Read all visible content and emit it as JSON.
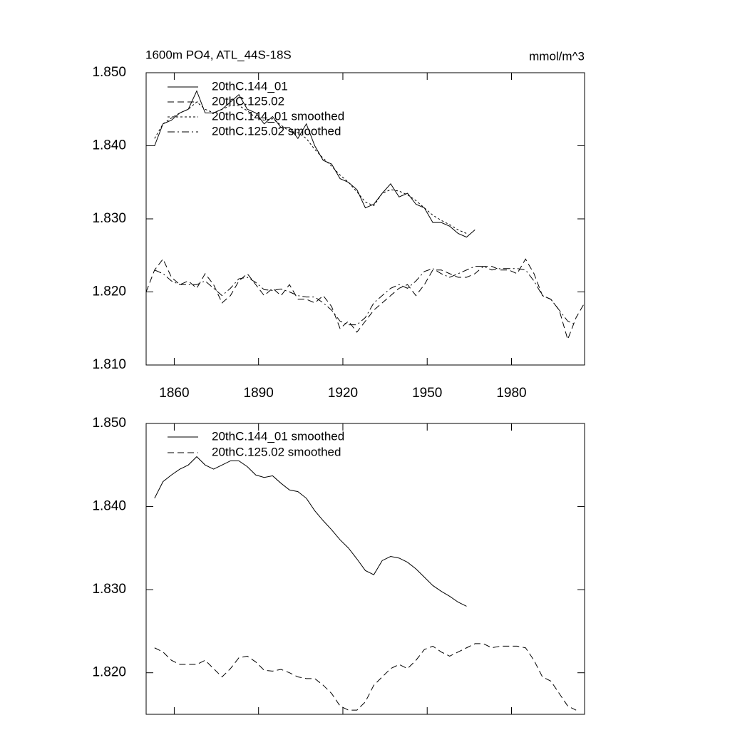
{
  "chart_data": [
    {
      "type": "line",
      "title": "1600m PO4, ATL_44S-18S",
      "units_label": "mmol/m^3",
      "x": [
        1850,
        1853,
        1856,
        1859,
        1862,
        1865,
        1868,
        1871,
        1874,
        1877,
        1880,
        1883,
        1886,
        1889,
        1892,
        1895,
        1898,
        1901,
        1904,
        1907,
        1910,
        1913,
        1916,
        1919,
        1922,
        1925,
        1928,
        1931,
        1934,
        1937,
        1940,
        1943,
        1946,
        1949,
        1952,
        1955,
        1958,
        1961,
        1964,
        1967,
        1970,
        1973,
        1976,
        1979,
        1982,
        1985,
        1988,
        1991,
        1994,
        1997,
        2000,
        2003,
        2006
      ],
      "xlim": [
        1850,
        2006
      ],
      "xticks": [
        1860,
        1890,
        1920,
        1950,
        1980
      ],
      "ylim": [
        1.81,
        1.85
      ],
      "yticks": [
        {
          "value": 1.81,
          "label": "1.810"
        },
        {
          "value": 1.82,
          "label": "1.820"
        },
        {
          "value": 1.83,
          "label": "1.830"
        },
        {
          "value": 1.84,
          "label": "1.840"
        },
        {
          "value": 1.85,
          "label": "1.850"
        }
      ],
      "series": [
        {
          "name": "20thC.144_01",
          "color": "#000000",
          "dash": "none",
          "values": [
            1.84,
            1.84,
            1.843,
            1.8435,
            1.8445,
            1.845,
            1.8475,
            1.8445,
            1.8445,
            1.845,
            1.846,
            1.847,
            1.845,
            1.8445,
            1.843,
            1.844,
            1.8425,
            1.8425,
            1.841,
            1.843,
            1.84,
            1.838,
            1.8375,
            1.8355,
            1.835,
            1.834,
            1.8315,
            1.832,
            1.8335,
            1.8348,
            1.833,
            1.8335,
            1.832,
            1.8315,
            1.8295,
            1.8295,
            1.829,
            1.828,
            1.8275,
            1.8285,
            null,
            null,
            null,
            null,
            null,
            null,
            null,
            null,
            null,
            null,
            null,
            null,
            null
          ]
        },
        {
          "name": "20thC.125.02",
          "color": "#000000",
          "dash": "9 5",
          "values": [
            1.82,
            1.823,
            1.8245,
            1.822,
            1.821,
            1.8215,
            1.8205,
            1.8225,
            1.821,
            1.8185,
            1.8195,
            1.8215,
            1.8225,
            1.821,
            1.8195,
            1.8205,
            1.8195,
            1.821,
            1.819,
            1.819,
            1.8185,
            1.8195,
            1.818,
            1.815,
            1.816,
            1.8145,
            1.816,
            1.8175,
            1.8185,
            1.8195,
            1.8205,
            1.821,
            1.8195,
            1.821,
            1.823,
            1.823,
            1.8225,
            1.822,
            1.822,
            1.8225,
            1.8235,
            1.8235,
            1.823,
            1.823,
            1.8225,
            1.8245,
            1.8225,
            1.8195,
            1.819,
            1.8175,
            1.8135,
            1.8165,
            1.8185
          ]
        },
        {
          "name": "20thC.144_01 smoothed",
          "color": "#000000",
          "dash": "3 3",
          "values": [
            null,
            1.841,
            1.843,
            1.8438,
            1.8445,
            1.845,
            1.846,
            1.845,
            1.8445,
            1.845,
            1.8455,
            1.8455,
            1.8448,
            1.8438,
            1.8435,
            1.8437,
            1.8428,
            1.842,
            1.8418,
            1.841,
            1.8395,
            1.8383,
            1.8372,
            1.836,
            1.835,
            1.8337,
            1.8323,
            1.8318,
            1.8335,
            1.834,
            1.8338,
            1.8333,
            1.8325,
            1.8315,
            1.8305,
            1.8298,
            1.8292,
            1.8285,
            1.828,
            null,
            null,
            null,
            null,
            null,
            null,
            null,
            null,
            null,
            null,
            null,
            null,
            null,
            null
          ]
        },
        {
          "name": "20thC.125.02 smoothed",
          "color": "#000000",
          "dash": "10 4 2 4",
          "values": [
            null,
            1.823,
            1.8225,
            1.8215,
            1.821,
            1.821,
            1.821,
            1.8215,
            1.8205,
            1.8195,
            1.8205,
            1.8218,
            1.822,
            1.8213,
            1.8203,
            1.8202,
            1.8204,
            1.82,
            1.8195,
            1.8193,
            1.8193,
            1.8185,
            1.8175,
            1.816,
            1.8155,
            1.8155,
            1.8165,
            1.8185,
            1.8195,
            1.8205,
            1.821,
            1.8205,
            1.8215,
            1.8228,
            1.8232,
            1.8225,
            1.822,
            1.8225,
            1.823,
            1.8235,
            1.8235,
            1.823,
            1.8232,
            1.8232,
            1.8232,
            1.823,
            1.8215,
            1.8195,
            1.819,
            1.8175,
            1.816,
            1.8155,
            null
          ]
        }
      ]
    },
    {
      "type": "line",
      "x": [
        1850,
        1853,
        1856,
        1859,
        1862,
        1865,
        1868,
        1871,
        1874,
        1877,
        1880,
        1883,
        1886,
        1889,
        1892,
        1895,
        1898,
        1901,
        1904,
        1907,
        1910,
        1913,
        1916,
        1919,
        1922,
        1925,
        1928,
        1931,
        1934,
        1937,
        1940,
        1943,
        1946,
        1949,
        1952,
        1955,
        1958,
        1961,
        1964,
        1967,
        1970,
        1973,
        1976,
        1979,
        1982,
        1985,
        1988,
        1991,
        1994,
        1997,
        2000,
        2003,
        2006
      ],
      "xlim": [
        1850,
        2006
      ],
      "xticks": [
        1860,
        1890,
        1920,
        1950,
        1980
      ],
      "ylim": [
        1.815,
        1.85
      ],
      "yticks": [
        {
          "value": 1.82,
          "label": "1.820"
        },
        {
          "value": 1.83,
          "label": "1.830"
        },
        {
          "value": 1.84,
          "label": "1.840"
        },
        {
          "value": 1.85,
          "label": "1.850"
        }
      ],
      "series": [
        {
          "name": "20thC.144_01 smoothed",
          "color": "#000000",
          "dash": "none",
          "values": [
            null,
            1.841,
            1.843,
            1.8438,
            1.8445,
            1.845,
            1.846,
            1.845,
            1.8445,
            1.845,
            1.8455,
            1.8455,
            1.8448,
            1.8438,
            1.8435,
            1.8437,
            1.8428,
            1.842,
            1.8418,
            1.841,
            1.8395,
            1.8383,
            1.8372,
            1.836,
            1.835,
            1.8337,
            1.8323,
            1.8318,
            1.8335,
            1.834,
            1.8338,
            1.8333,
            1.8325,
            1.8315,
            1.8305,
            1.8298,
            1.8292,
            1.8285,
            1.828,
            null,
            null,
            null,
            null,
            null,
            null,
            null,
            null,
            null,
            null,
            null,
            null,
            null,
            null
          ]
        },
        {
          "name": "20thC.125.02 smoothed",
          "color": "#000000",
          "dash": "9 5",
          "values": [
            null,
            1.823,
            1.8225,
            1.8215,
            1.821,
            1.821,
            1.821,
            1.8215,
            1.8205,
            1.8195,
            1.8205,
            1.8218,
            1.822,
            1.8213,
            1.8203,
            1.8202,
            1.8204,
            1.82,
            1.8195,
            1.8193,
            1.8193,
            1.8185,
            1.8175,
            1.816,
            1.8155,
            1.8155,
            1.8165,
            1.8185,
            1.8195,
            1.8205,
            1.821,
            1.8205,
            1.8215,
            1.8228,
            1.8232,
            1.8225,
            1.822,
            1.8225,
            1.823,
            1.8235,
            1.8235,
            1.823,
            1.8232,
            1.8232,
            1.8232,
            1.823,
            1.8215,
            1.8195,
            1.819,
            1.8175,
            1.816,
            1.8155,
            null
          ]
        }
      ]
    }
  ]
}
